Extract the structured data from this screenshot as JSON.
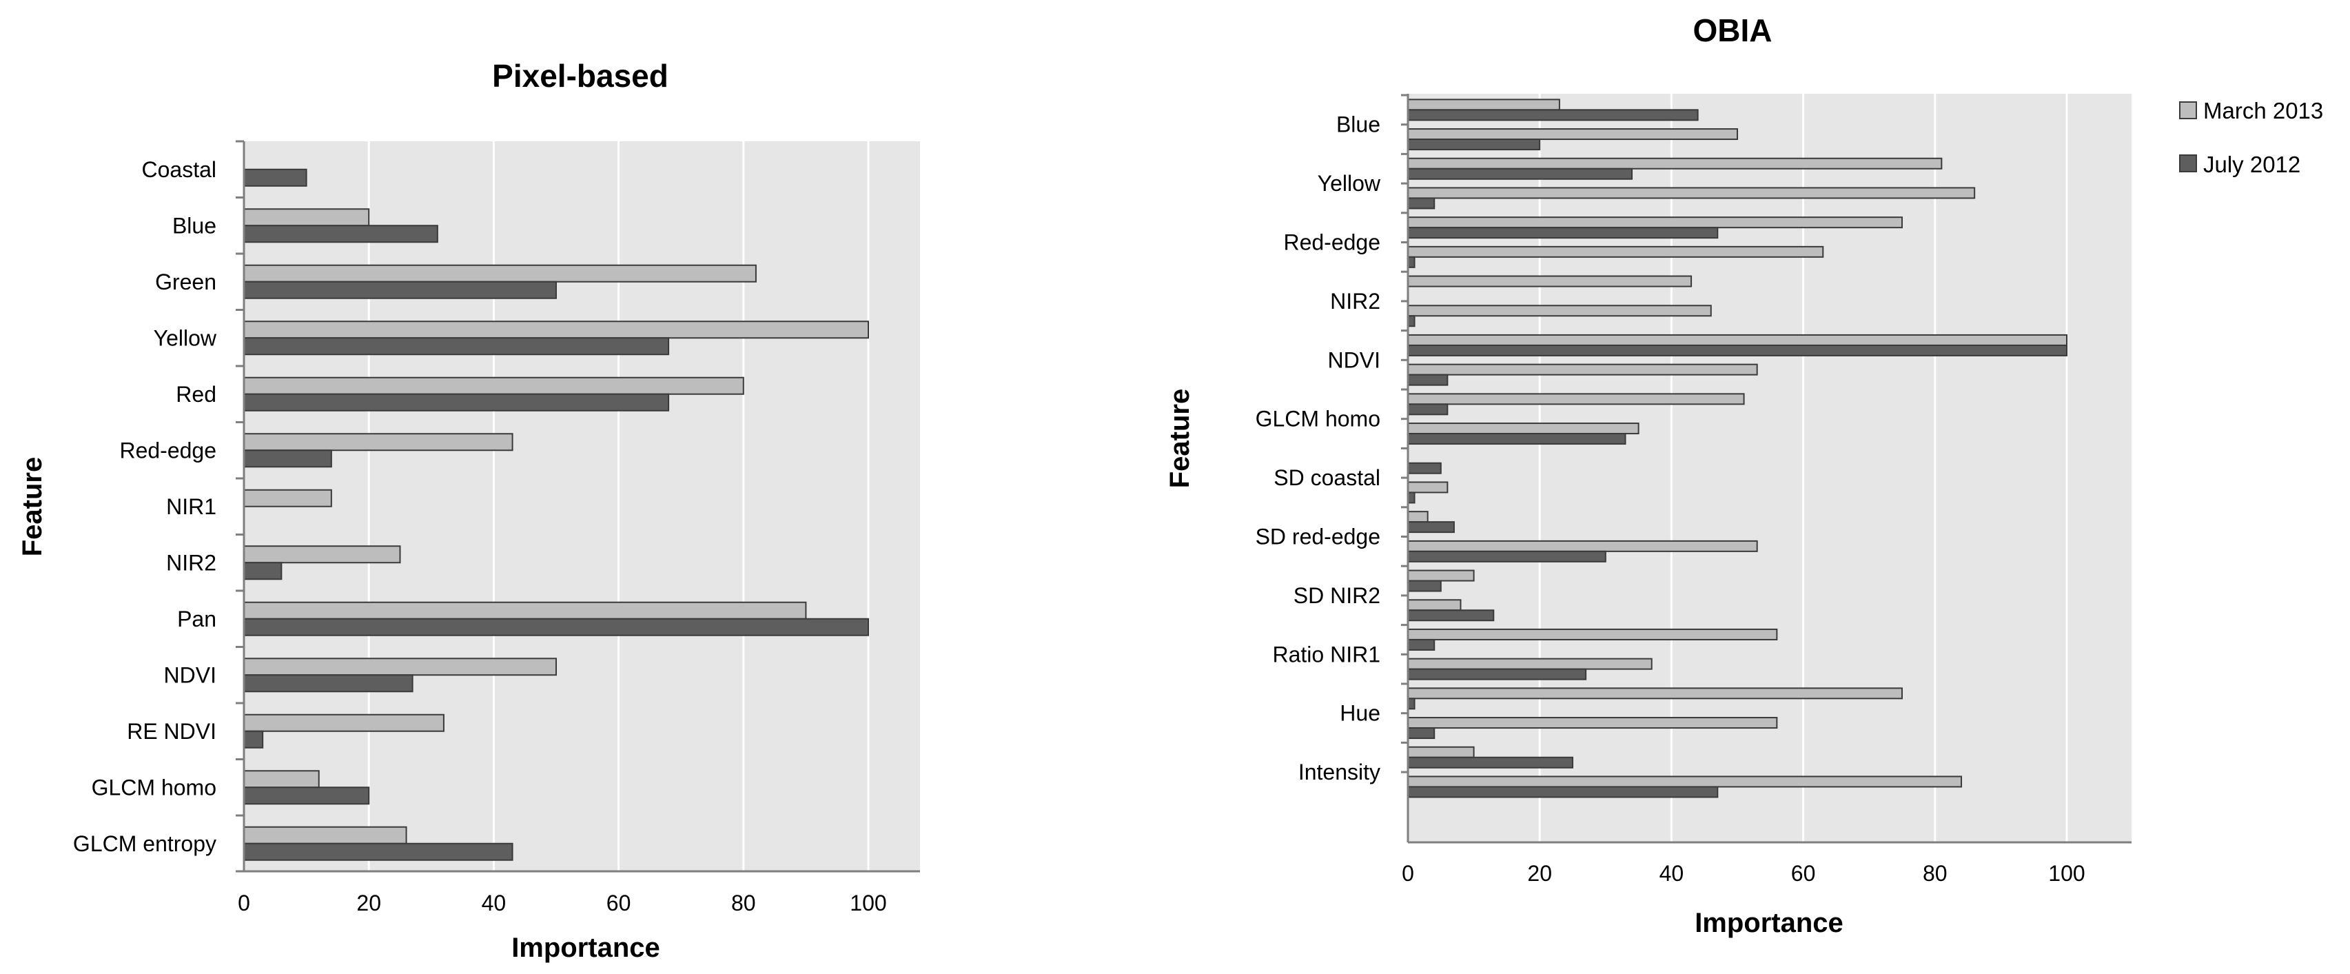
{
  "colors": {
    "march": "#bdbdbd",
    "july": "#5e5e5e",
    "plot_bg": "#e6e6e6",
    "grid": "#ffffff",
    "axis": "#7f7f7f",
    "bar_border": "#3a3a3a"
  },
  "legend": {
    "march_label": "March 2013",
    "july_label": "July 2012"
  },
  "chart_data": [
    {
      "type": "bar",
      "orientation": "horizontal",
      "title": "Pixel-based",
      "xlabel": "Importance",
      "ylabel": "Feature",
      "xlim": [
        0,
        108
      ],
      "xticks": [
        0,
        20,
        40,
        60,
        80,
        100
      ],
      "grid": true,
      "categories": [
        "Coastal",
        "Blue",
        "Green",
        "Yellow",
        "Red",
        "Red-edge",
        "NIR1",
        "NIR2",
        "Pan",
        "NDVI",
        "RE NDVI",
        "GLCM homo",
        "GLCM entropy"
      ],
      "series": [
        {
          "name": "March 2013",
          "values": [
            null,
            20,
            82,
            100,
            80,
            43,
            14,
            25,
            90,
            50,
            32,
            12,
            26
          ]
        },
        {
          "name": "July 2012",
          "values": [
            10,
            31,
            50,
            68,
            68,
            14,
            null,
            6,
            100,
            27,
            3,
            20,
            43
          ]
        }
      ]
    },
    {
      "type": "bar",
      "orientation": "horizontal",
      "title": "OBIA",
      "xlabel": "Importance",
      "ylabel": "Feature",
      "xlim": [
        0,
        110
      ],
      "xticks": [
        0,
        20,
        40,
        60,
        80,
        100
      ],
      "grid": true,
      "legend_position": "top-right",
      "labeled_categories": [
        "Blue",
        "Yellow",
        "Red-edge",
        "NIR2",
        "NDVI",
        "GLCM homo",
        "SD coastal",
        "SD red-edge",
        "SD NIR2",
        "Ratio NIR1",
        "Hue",
        "Intensity"
      ],
      "series": [
        {
          "name": "March 2013",
          "values": [
            23,
            50,
            81,
            86,
            75,
            63,
            43,
            46,
            100,
            53,
            51,
            35,
            0,
            6,
            3,
            53,
            10,
            8,
            56,
            37,
            75,
            56,
            10,
            84
          ]
        },
        {
          "name": "July 2012",
          "values": [
            44,
            20,
            34,
            4,
            47,
            1,
            0,
            1,
            100,
            6,
            6,
            33,
            5,
            1,
            7,
            30,
            5,
            13,
            4,
            27,
            1,
            4,
            25,
            47
          ]
        }
      ]
    }
  ]
}
